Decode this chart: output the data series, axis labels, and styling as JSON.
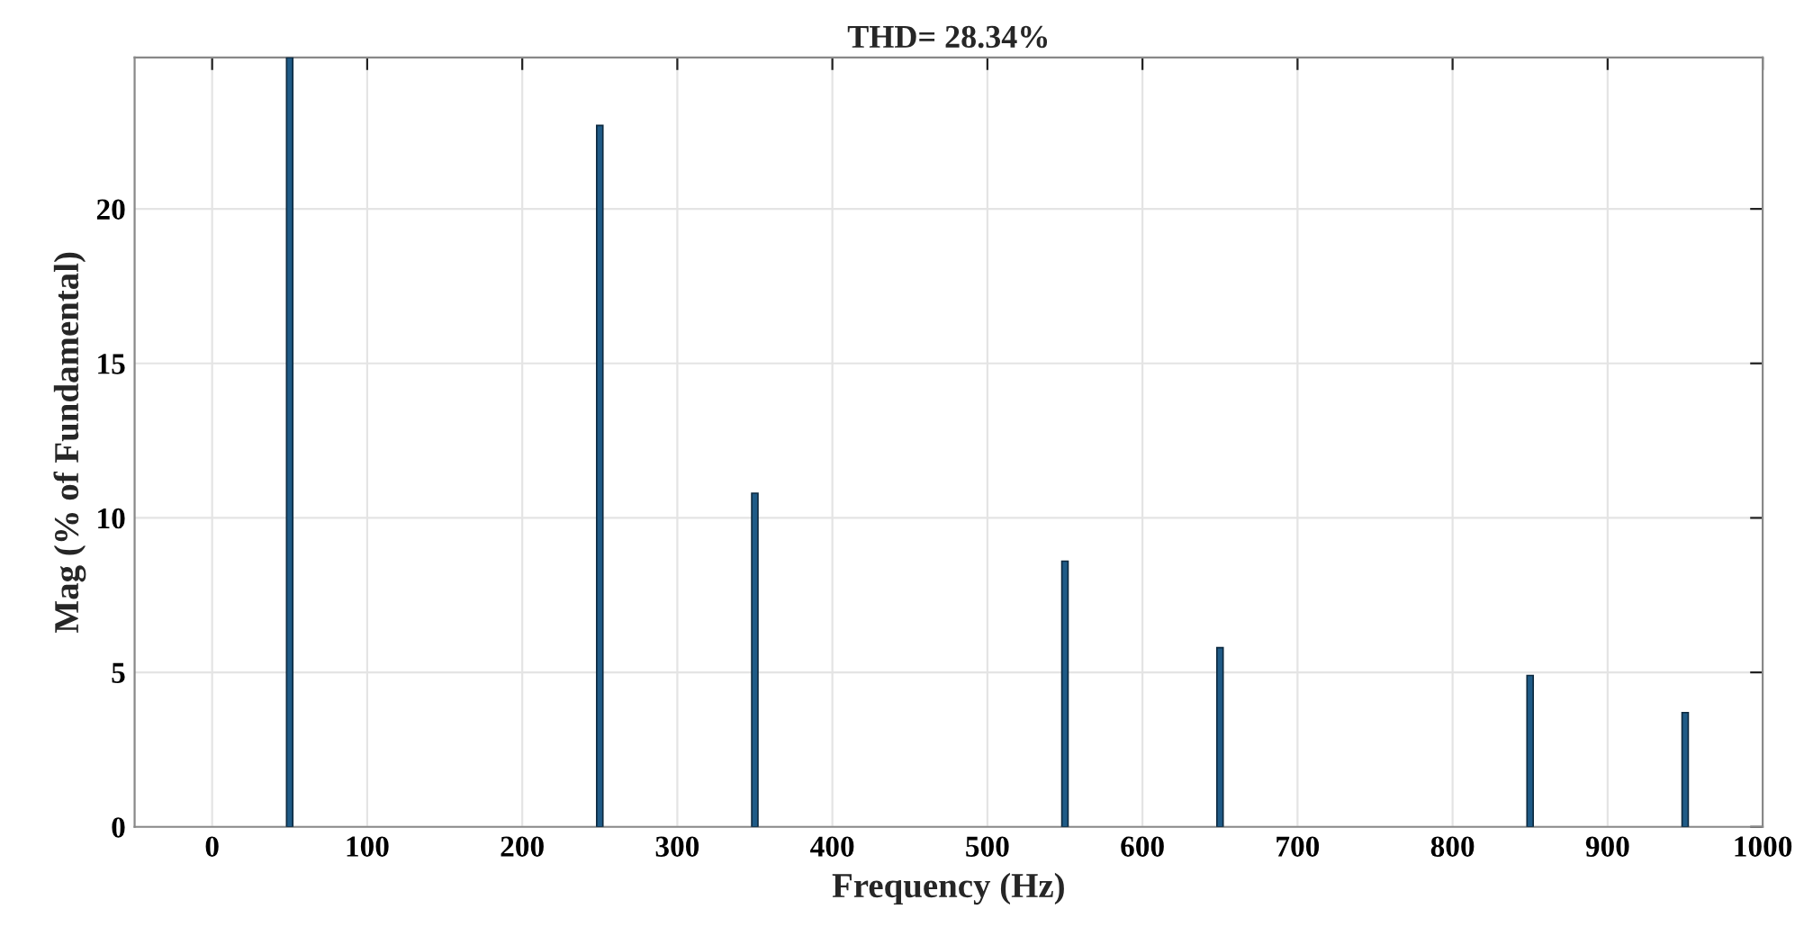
{
  "chart_data": {
    "type": "bar",
    "title": "THD= 28.34%",
    "xlabel": "Frequency (Hz)",
    "ylabel": "Mag (% of Fundamental)",
    "x": [
      50,
      250,
      350,
      550,
      650,
      850,
      950
    ],
    "series": [
      {
        "color": "#1f5b87",
        "values": [
          24.9,
          22.7,
          10.8,
          8.6,
          5.8,
          4.9,
          3.7
        ]
      }
    ],
    "xlim": [
      -50,
      1000
    ],
    "xticks": [
      0,
      100,
      200,
      300,
      400,
      500,
      600,
      700,
      800,
      900,
      1000
    ],
    "ylim": [
      0,
      24.9
    ],
    "yticks": [
      0,
      5,
      10,
      15,
      20
    ],
    "grid": true
  }
}
